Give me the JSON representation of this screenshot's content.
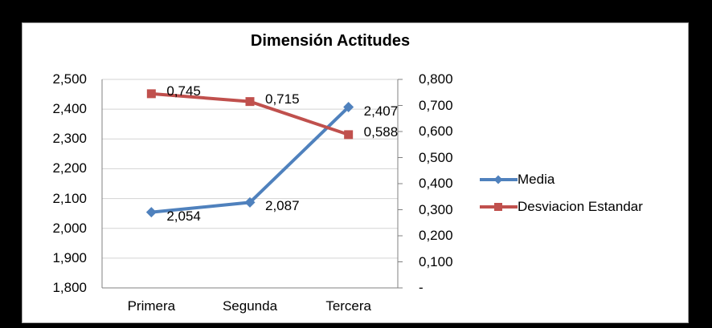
{
  "chart_data": {
    "type": "line",
    "title": "Dimensión Actitudes",
    "categories": [
      "Primera",
      "Segunda",
      "Tercera"
    ],
    "series": [
      {
        "name": "Media",
        "axis": "left",
        "color": "#4F81BD",
        "marker": "diamond",
        "values": [
          2.054,
          2.087,
          2.407
        ],
        "labels": [
          "2,054",
          "2,087",
          "2,407"
        ]
      },
      {
        "name": "Desviacion Estandar",
        "axis": "right",
        "color": "#C0504D",
        "marker": "square",
        "values": [
          0.745,
          0.715,
          0.588
        ],
        "labels": [
          "0,745",
          "0,715",
          "0,588"
        ]
      }
    ],
    "left_axis": {
      "min": 1.8,
      "max": 2.5,
      "ticks": [
        "2,500",
        "2,400",
        "2,300",
        "2,200",
        "2,100",
        "2,000",
        "1,900",
        "1,800"
      ]
    },
    "right_axis": {
      "min": 0,
      "max": 0.8,
      "ticks": [
        "0,800",
        "0,700",
        "0,600",
        "0,500",
        "0,400",
        "0,300",
        "0,200",
        "0,100",
        "-"
      ]
    },
    "grid": true,
    "legend_position": "right"
  },
  "colors": {
    "page_background": "#000000",
    "chart_background": "#FFFFFF",
    "chart_border": "#A6A6A6",
    "gridline": "#D3D3D3",
    "axis_line": "#808080",
    "text": "#000000",
    "series_media": "#4F81BD",
    "series_desviacion": "#C0504D"
  }
}
